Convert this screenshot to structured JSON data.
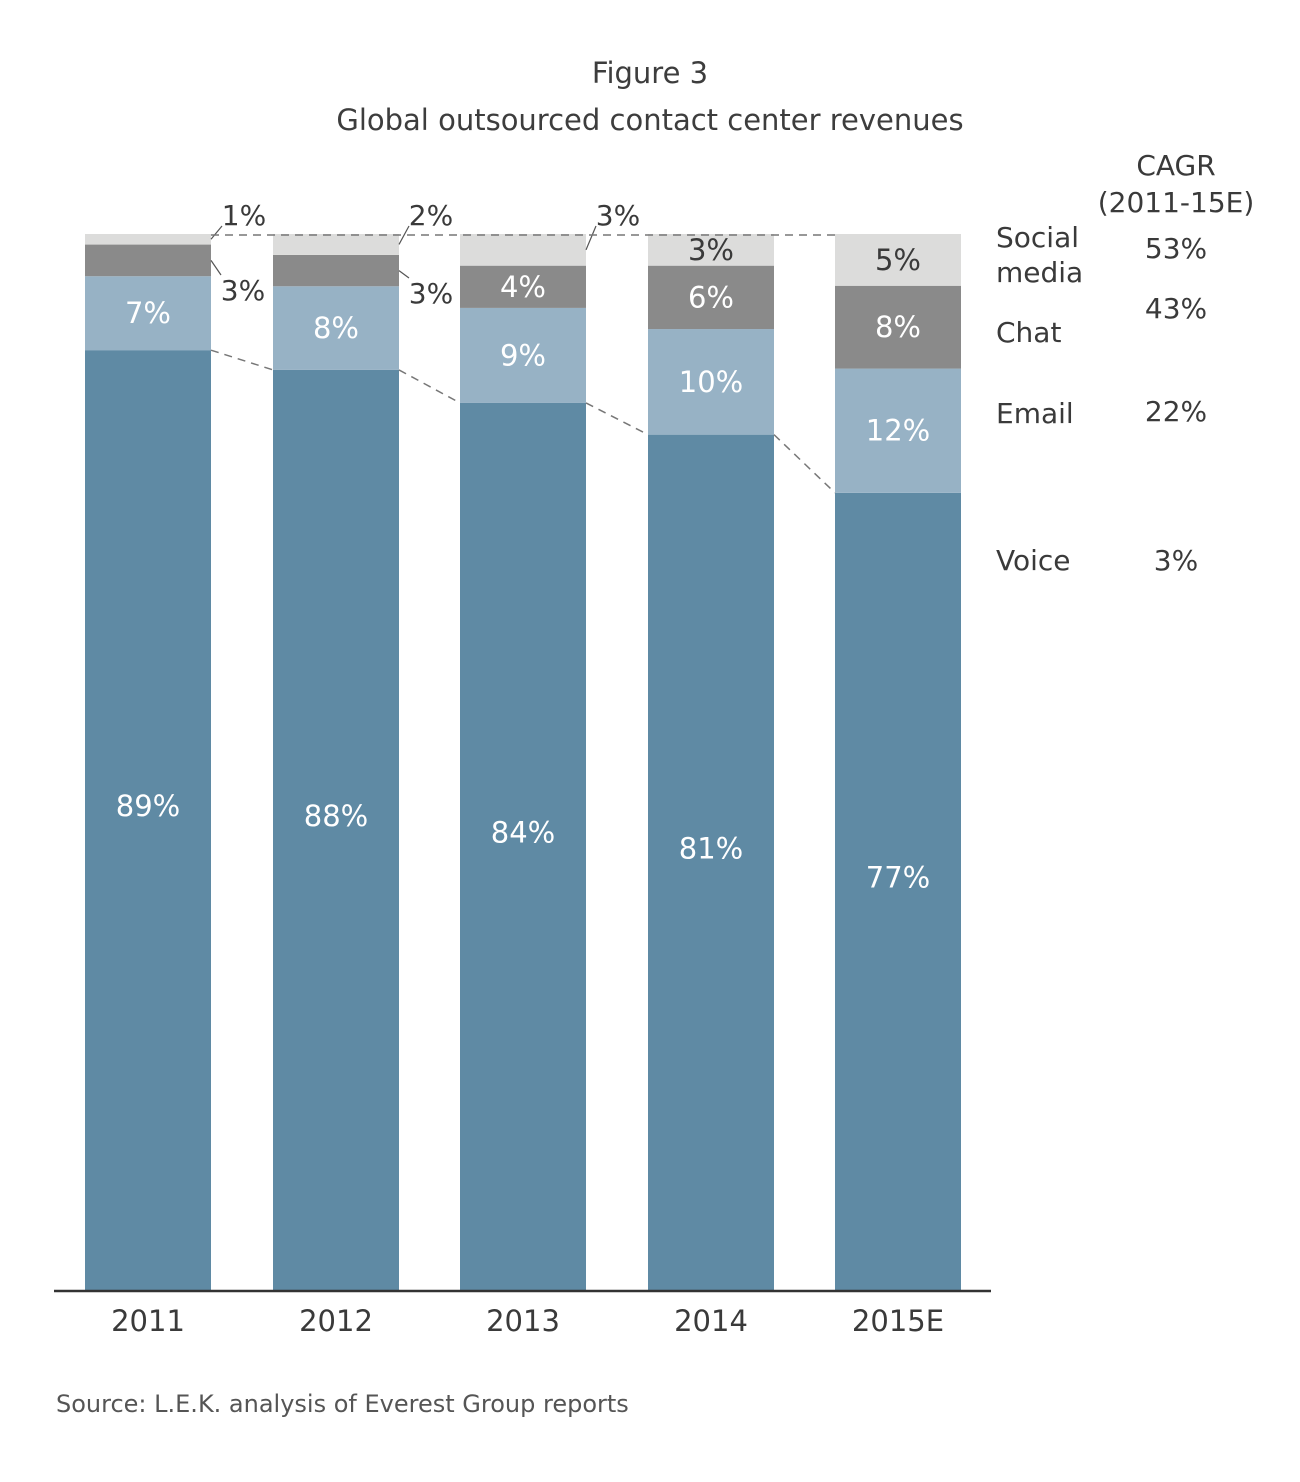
{
  "chart_data": {
    "type": "bar",
    "stacked": true,
    "title": "Figure 3",
    "subtitle": "Global outsourced contact center revenues",
    "categories": [
      "2011",
      "2012",
      "2013",
      "2014",
      "2015E"
    ],
    "series": [
      {
        "name": "Voice",
        "values": [
          89,
          88,
          84,
          81,
          77
        ],
        "color": "#5f8aa4",
        "cagr": "3%"
      },
      {
        "name": "Email",
        "values": [
          7,
          8,
          9,
          10,
          12
        ],
        "color": "#97b2c5",
        "cagr": "22%"
      },
      {
        "name": "Chat",
        "values": [
          3,
          3,
          4,
          6,
          8
        ],
        "color": "#8a8a8a",
        "cagr": "43%"
      },
      {
        "name": "Social media",
        "values": [
          1,
          2,
          3,
          3,
          5
        ],
        "color": "#dcdcdb",
        "cagr": "53%"
      }
    ],
    "value_suffix": "%",
    "cagr_header": "CAGR (2011-15E)",
    "ylim": [
      0,
      100
    ],
    "grid": false,
    "legend": "right",
    "source": "Source: L.E.K. analysis of Everest Group reports"
  }
}
